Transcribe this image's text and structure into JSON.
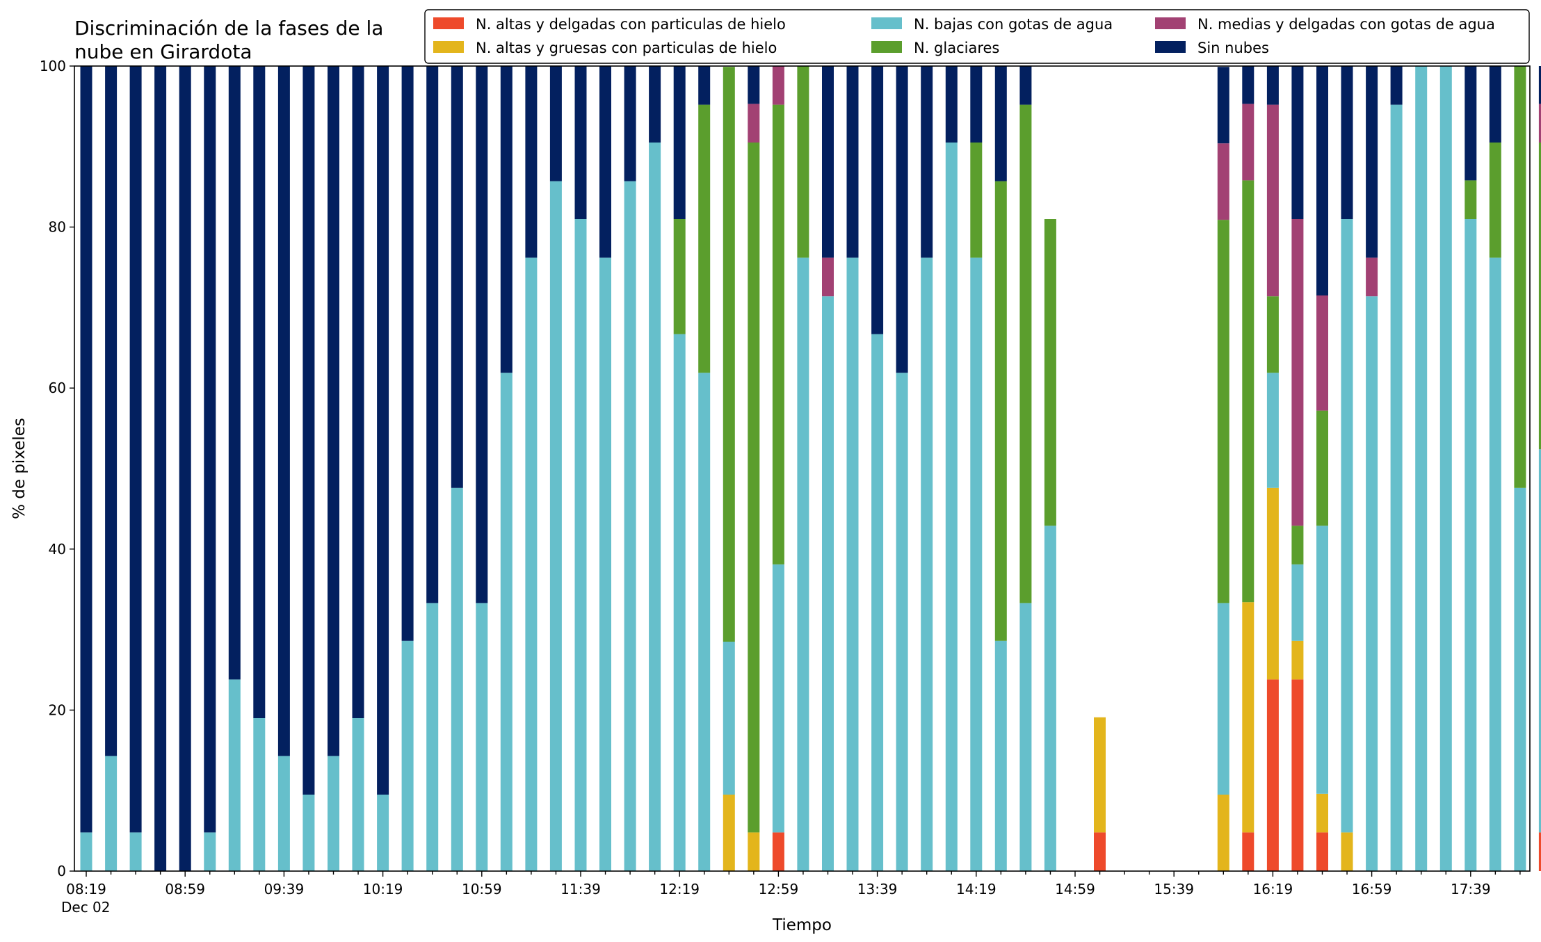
{
  "chart_data": {
    "type": "bar",
    "stacked": true,
    "title_line1": "Discriminación de la fases de la",
    "title_line2": "nube en Girardota",
    "xlabel": "Tiempo",
    "ylabel": "% de pixeles",
    "ylim": [
      0,
      100
    ],
    "yticks": [
      "0",
      "20",
      "40",
      "60",
      "80",
      "100"
    ],
    "xtick_labels": [
      "08:19",
      "08:59",
      "09:39",
      "10:19",
      "10:59",
      "11:39",
      "12:19",
      "12:59",
      "13:39",
      "14:19",
      "14:59",
      "15:39",
      "16:19",
      "16:59",
      "17:39"
    ],
    "date_label": "Dec 02",
    "legend_position": "top-right",
    "series": [
      {
        "name": "N. altas y delgadas con particulas de hielo",
        "color": "#ee4a2b",
        "values": [
          0,
          0,
          0,
          0,
          0,
          0,
          0,
          0,
          0,
          0,
          0,
          0,
          0,
          0,
          0,
          0,
          0,
          0,
          0,
          0,
          0,
          0,
          0,
          0,
          0,
          0,
          0,
          0,
          4.8,
          0,
          0,
          0,
          0,
          0,
          0,
          0,
          0,
          0,
          0,
          0,
          0,
          4.8,
          0,
          0,
          0,
          0,
          0,
          4.8,
          23.8,
          23.8,
          4.8,
          0,
          0,
          0,
          0,
          0,
          0,
          0,
          0,
          4.8
        ]
      },
      {
        "name": "N. altas y gruesas con particulas de hielo",
        "color": "#e3b51c",
        "values": [
          0,
          0,
          0,
          0,
          0,
          0,
          0,
          0,
          0,
          0,
          0,
          0,
          0,
          0,
          0,
          0,
          0,
          0,
          0,
          0,
          0,
          0,
          0,
          0,
          0,
          0,
          9.5,
          4.8,
          0,
          0,
          0,
          0,
          0,
          0,
          0,
          0,
          0,
          0,
          0,
          0,
          0,
          14.3,
          0,
          0,
          0,
          0,
          9.5,
          28.6,
          23.8,
          4.8,
          4.8,
          4.8,
          0,
          0,
          0,
          0,
          0,
          0,
          0,
          0
        ]
      },
      {
        "name": "N. bajas con gotas de agua",
        "color": "#66bfcb",
        "values": [
          4.8,
          14.3,
          4.8,
          0,
          0,
          4.8,
          23.8,
          19,
          14.3,
          9.5,
          14.3,
          19,
          9.5,
          28.6,
          33.3,
          47.6,
          33.3,
          61.9,
          76.2,
          85.7,
          81,
          76.2,
          85.7,
          90.5,
          66.7,
          61.9,
          19,
          0,
          33.3,
          76.2,
          71.4,
          76.2,
          66.7,
          61.9,
          76.2,
          90.5,
          76.2,
          28.6,
          33.3,
          42.9,
          0,
          0,
          0,
          0,
          0,
          0,
          23.8,
          0,
          14.3,
          9.5,
          33.3,
          76.2,
          71.4,
          95.2,
          100,
          100,
          81,
          76.2,
          47.6,
          47.6
        ]
      },
      {
        "name": "N. glaciares",
        "color": "#5b9e2d",
        "values": [
          0,
          0,
          0,
          0,
          0,
          0,
          0,
          0,
          0,
          0,
          0,
          0,
          0,
          0,
          0,
          0,
          0,
          0,
          0,
          0,
          0,
          0,
          0,
          0,
          14.3,
          33.3,
          71.4,
          85.7,
          57.1,
          23.8,
          0,
          0,
          0,
          0,
          0,
          0,
          14.3,
          57.1,
          61.9,
          38.1,
          0,
          0,
          0,
          0,
          0,
          0,
          47.6,
          52.4,
          9.5,
          4.8,
          14.3,
          0,
          0,
          0,
          0,
          0,
          4.8,
          14.3,
          52.4,
          38.1
        ]
      },
      {
        "name": "N. medias y delgadas con gotas de agua",
        "color": "#a24173",
        "values": [
          0,
          0,
          0,
          0,
          0,
          0,
          0,
          0,
          0,
          0,
          0,
          0,
          0,
          0,
          0,
          0,
          0,
          0,
          0,
          0,
          0,
          0,
          0,
          0,
          0,
          0,
          0,
          4.8,
          4.8,
          0,
          4.8,
          0,
          0,
          0,
          0,
          0,
          0,
          0,
          0,
          0,
          0,
          0,
          0,
          0,
          0,
          0,
          9.5,
          9.5,
          23.8,
          38.1,
          14.3,
          0,
          4.8,
          0,
          0,
          0,
          0,
          0,
          0,
          4.8
        ]
      },
      {
        "name": "Sin nubes",
        "color": "#03205f",
        "values": [
          95.2,
          85.7,
          95.2,
          100,
          100,
          95.2,
          76.2,
          81,
          85.7,
          90.5,
          85.7,
          81,
          90.5,
          71.4,
          66.7,
          52.4,
          66.7,
          38.1,
          23.8,
          14.3,
          19,
          23.8,
          14.3,
          9.5,
          19,
          4.8,
          0,
          4.8,
          0,
          0,
          23.8,
          23.8,
          33.3,
          38.1,
          23.8,
          9.5,
          9.5,
          14.3,
          4.8,
          0,
          0,
          0,
          0,
          0,
          0,
          0,
          9.5,
          4.8,
          4.8,
          19,
          28.6,
          19,
          23.8,
          4.8,
          0,
          0,
          14.3,
          9.5,
          0,
          4.8
        ]
      }
    ],
    "legend_order": [
      0,
      1,
      2,
      3,
      4,
      5
    ]
  }
}
